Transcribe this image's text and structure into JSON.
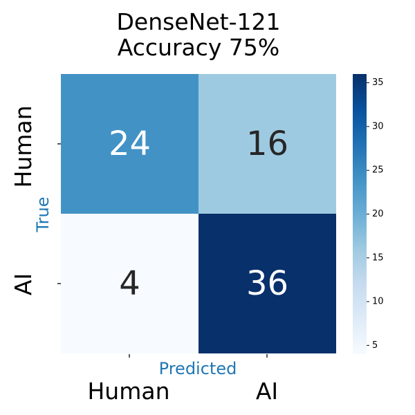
{
  "chart_data": {
    "type": "heatmap",
    "title": "DenseNet-121",
    "subtitle": "Accuracy 75%",
    "xlabel": "Predicted",
    "ylabel": "True",
    "x_categories": [
      "Human",
      "AI"
    ],
    "y_categories": [
      "Human",
      "AI"
    ],
    "values": [
      [
        24,
        16
      ],
      [
        4,
        36
      ]
    ],
    "colorbar": {
      "min": 4,
      "max": 36,
      "ticks": [
        5,
        10,
        15,
        20,
        25,
        30,
        35
      ]
    },
    "colormap": [
      "#f7fbff",
      "#deebf7",
      "#c6dbef",
      "#9ecae1",
      "#6baed6",
      "#4292c6",
      "#2171b5",
      "#08519c",
      "#08306b"
    ],
    "label_color": "#1f77b4",
    "text_colors": {
      "dark": "#262626",
      "light": "#ffffff"
    }
  }
}
